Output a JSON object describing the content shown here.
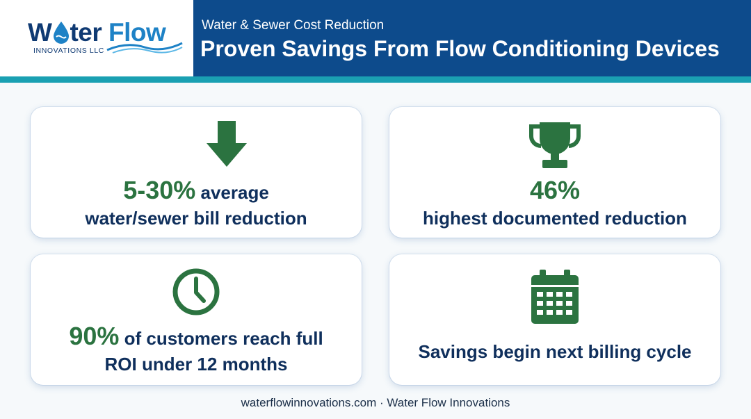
{
  "logo": {
    "word_part1": "W",
    "word_part2": "ter",
    "word_part3": "Flow",
    "subtitle": "INNOVATIONS LLC",
    "icon": "water-drop-icon"
  },
  "header": {
    "subtitle": "Water & Sewer Cost Reduction",
    "title": "Proven Savings From Flow Conditioning Devices"
  },
  "colors": {
    "header_bg": "#0d4b8c",
    "teal_band": "#1aa0b2",
    "stat_green": "#2b7340",
    "text_navy": "#0f2f5c"
  },
  "cards": [
    {
      "icon": "down-arrow-icon",
      "stat": "5-30%",
      "line1_rest": " average",
      "line2": "water/sewer bill reduction"
    },
    {
      "icon": "trophy-icon",
      "stat": "46%",
      "line2": "highest documented reduction"
    },
    {
      "icon": "clock-icon",
      "stat": "90%",
      "line1_rest": " of customers reach full",
      "line2": "ROI under 12 months"
    },
    {
      "icon": "calendar-icon",
      "line1": "Savings begin next billing cycle"
    }
  ],
  "footer": "waterflowinnovations.com · Water Flow Innovations"
}
